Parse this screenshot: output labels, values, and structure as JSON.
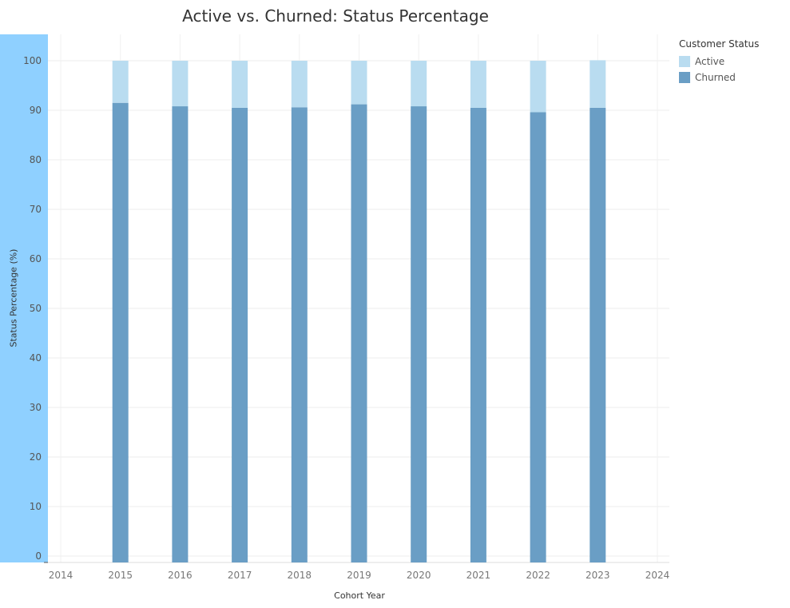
{
  "chart_data": {
    "type": "bar",
    "stacked": true,
    "title": "Active vs. Churned: Status Percentage",
    "xlabel": "Cohort Year",
    "ylabel": "Status Percentage (%)",
    "x_ticks": [
      "2014",
      "2015",
      "2016",
      "2017",
      "2018",
      "2019",
      "2020",
      "2021",
      "2022",
      "2023",
      "2024"
    ],
    "categories": [
      "2015",
      "2016",
      "2017",
      "2018",
      "2019",
      "2020",
      "2021",
      "2022",
      "2023"
    ],
    "series": [
      {
        "name": "Churned",
        "color": "#6a9ec5",
        "values": [
          91.5,
          90.8,
          90.5,
          90.6,
          91.2,
          90.8,
          90.5,
          89.6,
          90.5
        ]
      },
      {
        "name": "Active",
        "color": "#b9dcf0",
        "values": [
          8.5,
          9.2,
          9.5,
          9.4,
          8.8,
          9.2,
          9.5,
          10.4,
          9.6
        ]
      }
    ],
    "ylim": [
      0,
      100
    ],
    "y_ticks": [
      0,
      10,
      20,
      30,
      40,
      50,
      60,
      70,
      80,
      90,
      100
    ],
    "grid": true,
    "legend_position": "top-right",
    "legend_title": "Customer Status",
    "legend_items": [
      {
        "label": "Active",
        "color": "#b9dcf0"
      },
      {
        "label": "Churned",
        "color": "#6a9ec5"
      }
    ],
    "axis_band_color": "#8fd0ff"
  }
}
